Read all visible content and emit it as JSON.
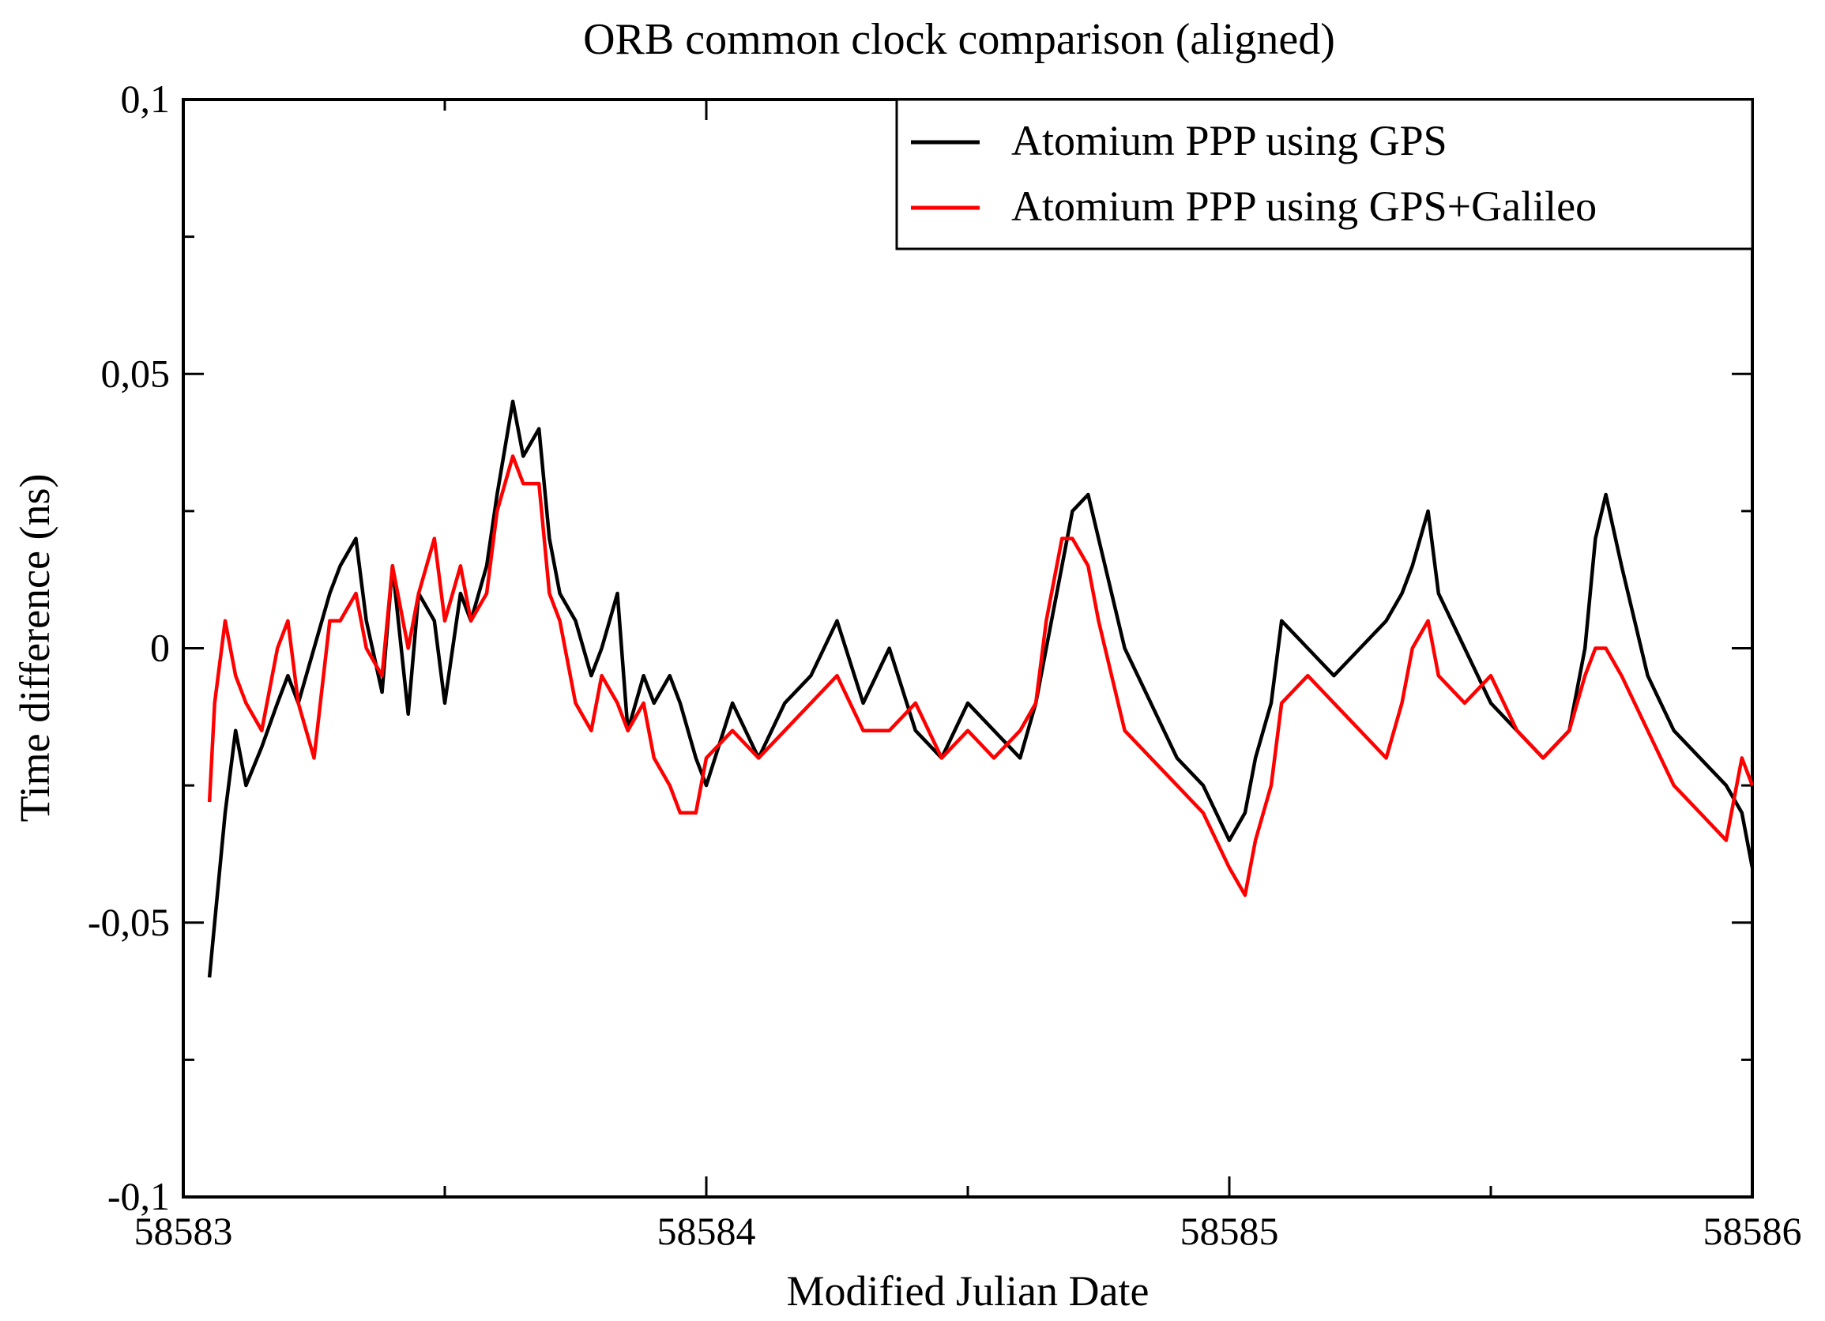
{
  "chart_data": {
    "type": "line",
    "title": "ORB common clock comparison (aligned)",
    "xlabel": "Modified Julian Date",
    "ylabel": "Time difference (ns)",
    "xlim": [
      58583,
      58586
    ],
    "ylim": [
      -0.1,
      0.1
    ],
    "x_ticks": [
      58583,
      58584,
      58585,
      58586
    ],
    "x_tick_labels": [
      "58583",
      "58584",
      "58585",
      "58586"
    ],
    "x_minor_ticks": [
      58583.5,
      58584.5,
      58585.5
    ],
    "y_ticks": [
      -0.1,
      -0.05,
      0,
      0.05,
      0.1
    ],
    "y_tick_labels": [
      "-0,1",
      "-0,05",
      "0",
      "0,05",
      "0,1"
    ],
    "y_minor_ticks": [
      -0.075,
      -0.025,
      0.025,
      0.075
    ],
    "grid": false,
    "legend_position": "top-right",
    "series": [
      {
        "name": "Atomium PPP using GPS",
        "color": "#000000",
        "x": [
          58583.05,
          58583.06,
          58583.08,
          58583.1,
          58583.12,
          58583.15,
          58583.18,
          58583.2,
          58583.22,
          58583.25,
          58583.28,
          58583.3,
          58583.33,
          58583.35,
          58583.38,
          58583.4,
          58583.43,
          58583.45,
          58583.48,
          58583.5,
          58583.53,
          58583.55,
          58583.58,
          58583.6,
          58583.63,
          58583.65,
          58583.68,
          58583.7,
          58583.72,
          58583.75,
          58583.78,
          58583.8,
          58583.83,
          58583.85,
          58583.88,
          58583.9,
          58583.93,
          58583.95,
          58583.98,
          58584.0,
          58584.05,
          58584.1,
          58584.15,
          58584.2,
          58584.25,
          58584.3,
          58584.35,
          58584.4,
          58584.45,
          58584.5,
          58584.55,
          58584.6,
          58584.63,
          58584.65,
          58584.68,
          58584.7,
          58584.73,
          58584.75,
          58584.8,
          58584.85,
          58584.9,
          58584.95,
          58585.0,
          58585.03,
          58585.05,
          58585.08,
          58585.1,
          58585.15,
          58585.2,
          58585.25,
          58585.3,
          58585.33,
          58585.35,
          58585.38,
          58585.4,
          58585.45,
          58585.5,
          58585.55,
          58585.6,
          58585.65,
          58585.68,
          58585.7,
          58585.72,
          58585.75,
          58585.8,
          58585.85,
          58585.9,
          58585.95,
          58585.98,
          58586.0
        ],
        "y": [
          -0.06,
          -0.05,
          -0.03,
          -0.015,
          -0.025,
          -0.018,
          -0.01,
          -0.005,
          -0.01,
          0.0,
          0.01,
          0.015,
          0.02,
          0.005,
          -0.008,
          0.015,
          -0.012,
          0.01,
          0.005,
          -0.01,
          0.01,
          0.005,
          0.015,
          0.028,
          0.045,
          0.035,
          0.04,
          0.02,
          0.01,
          0.005,
          -0.005,
          0.0,
          0.01,
          -0.015,
          -0.005,
          -0.01,
          -0.005,
          -0.01,
          -0.02,
          -0.025,
          -0.01,
          -0.02,
          -0.01,
          -0.005,
          0.005,
          -0.01,
          0.0,
          -0.015,
          -0.02,
          -0.01,
          -0.015,
          -0.02,
          -0.01,
          0.0,
          0.015,
          0.025,
          0.028,
          0.02,
          0.0,
          -0.01,
          -0.02,
          -0.025,
          -0.035,
          -0.03,
          -0.02,
          -0.01,
          0.005,
          0.0,
          -0.005,
          0.0,
          0.005,
          0.01,
          0.015,
          0.025,
          0.01,
          0.0,
          -0.01,
          -0.015,
          -0.02,
          -0.015,
          0.0,
          0.02,
          0.028,
          0.015,
          -0.005,
          -0.015,
          -0.02,
          -0.025,
          -0.03,
          -0.04
        ],
        "line_width": 4.5
      },
      {
        "name": "Atomium PPP using GPS+Galileo",
        "color": "#ff0000",
        "x": [
          58583.05,
          58583.06,
          58583.08,
          58583.1,
          58583.12,
          58583.15,
          58583.18,
          58583.2,
          58583.22,
          58583.25,
          58583.28,
          58583.3,
          58583.33,
          58583.35,
          58583.38,
          58583.4,
          58583.43,
          58583.45,
          58583.48,
          58583.5,
          58583.53,
          58583.55,
          58583.58,
          58583.6,
          58583.63,
          58583.65,
          58583.68,
          58583.7,
          58583.72,
          58583.75,
          58583.78,
          58583.8,
          58583.83,
          58583.85,
          58583.88,
          58583.9,
          58583.93,
          58583.95,
          58583.98,
          58584.0,
          58584.05,
          58584.1,
          58584.15,
          58584.2,
          58584.25,
          58584.3,
          58584.35,
          58584.4,
          58584.45,
          58584.5,
          58584.55,
          58584.6,
          58584.63,
          58584.65,
          58584.68,
          58584.7,
          58584.73,
          58584.75,
          58584.8,
          58584.85,
          58584.9,
          58584.95,
          58585.0,
          58585.03,
          58585.05,
          58585.08,
          58585.1,
          58585.15,
          58585.2,
          58585.25,
          58585.3,
          58585.33,
          58585.35,
          58585.38,
          58585.4,
          58585.45,
          58585.5,
          58585.55,
          58585.6,
          58585.65,
          58585.68,
          58585.7,
          58585.72,
          58585.75,
          58585.8,
          58585.85,
          58585.9,
          58585.95,
          58585.98,
          58586.0
        ],
        "y": [
          -0.028,
          -0.01,
          0.005,
          -0.005,
          -0.01,
          -0.015,
          0.0,
          0.005,
          -0.01,
          -0.02,
          0.005,
          0.005,
          0.01,
          0.0,
          -0.005,
          0.015,
          0.0,
          0.01,
          0.02,
          0.005,
          0.015,
          0.005,
          0.01,
          0.025,
          0.035,
          0.03,
          0.03,
          0.01,
          0.005,
          -0.01,
          -0.015,
          -0.005,
          -0.01,
          -0.015,
          -0.01,
          -0.02,
          -0.025,
          -0.03,
          -0.03,
          -0.02,
          -0.015,
          -0.02,
          -0.015,
          -0.01,
          -0.005,
          -0.015,
          -0.015,
          -0.01,
          -0.02,
          -0.015,
          -0.02,
          -0.015,
          -0.01,
          0.005,
          0.02,
          0.02,
          0.015,
          0.005,
          -0.015,
          -0.02,
          -0.025,
          -0.03,
          -0.04,
          -0.045,
          -0.035,
          -0.025,
          -0.01,
          -0.005,
          -0.01,
          -0.015,
          -0.02,
          -0.01,
          0.0,
          0.005,
          -0.005,
          -0.01,
          -0.005,
          -0.015,
          -0.02,
          -0.015,
          -0.005,
          0.0,
          0.0,
          -0.005,
          -0.015,
          -0.025,
          -0.03,
          -0.035,
          -0.02,
          -0.025
        ],
        "line_width": 4.5
      }
    ]
  }
}
